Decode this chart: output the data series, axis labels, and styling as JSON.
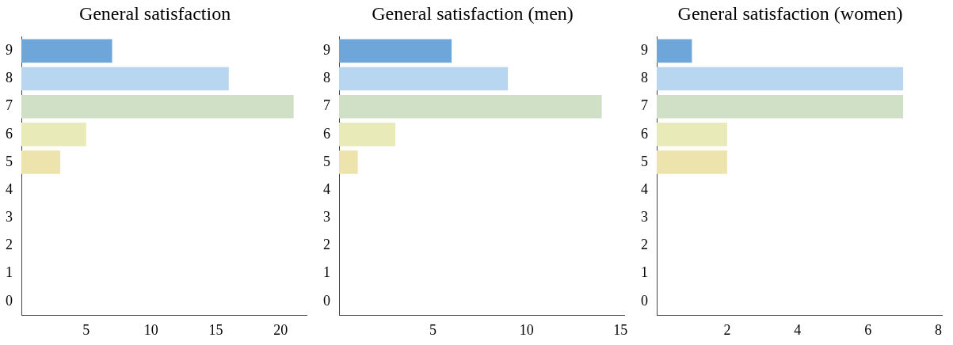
{
  "chart_data": [
    {
      "type": "bar",
      "orientation": "horizontal",
      "title": "General satisfaction",
      "categories": [
        "9",
        "8",
        "7",
        "6",
        "5",
        "4",
        "3",
        "2",
        "1",
        "0"
      ],
      "values": [
        7,
        16,
        21,
        5,
        3,
        0,
        0,
        0,
        0,
        0
      ],
      "colors": [
        "#6fa6da",
        "#b9d6f0",
        "#cfe0c6",
        "#e8eab8",
        "#ede3ad",
        "#cccccc",
        "#cccccc",
        "#cccccc",
        "#cccccc",
        "#cccccc"
      ],
      "xlim": [
        0,
        22
      ],
      "xticks": [
        5,
        10,
        15,
        20
      ],
      "grid": false,
      "legend": false
    },
    {
      "type": "bar",
      "orientation": "horizontal",
      "title": "General satisfaction (men)",
      "categories": [
        "9",
        "8",
        "7",
        "6",
        "5",
        "4",
        "3",
        "2",
        "1",
        "0"
      ],
      "values": [
        6,
        9,
        14,
        3,
        1,
        0,
        0,
        0,
        0,
        0
      ],
      "colors": [
        "#6fa6da",
        "#b9d6f0",
        "#cfe0c6",
        "#e8eab8",
        "#ede3ad",
        "#cccccc",
        "#cccccc",
        "#cccccc",
        "#cccccc",
        "#cccccc"
      ],
      "xlim": [
        0,
        15.2
      ],
      "xticks": [
        5,
        10,
        15
      ],
      "grid": false,
      "legend": false
    },
    {
      "type": "bar",
      "orientation": "horizontal",
      "title": "General satisfaction (women)",
      "categories": [
        "9",
        "8",
        "7",
        "6",
        "5",
        "4",
        "3",
        "2",
        "1",
        "0"
      ],
      "values": [
        1,
        7,
        7,
        2,
        2,
        0,
        0,
        0,
        0,
        0
      ],
      "colors": [
        "#6fa6da",
        "#b9d6f0",
        "#cfe0c6",
        "#e8eab8",
        "#ede3ad",
        "#cccccc",
        "#cccccc",
        "#cccccc",
        "#cccccc",
        "#cccccc"
      ],
      "xlim": [
        0,
        8.1
      ],
      "xticks": [
        2,
        4,
        6,
        8
      ],
      "grid": false,
      "legend": false
    }
  ]
}
